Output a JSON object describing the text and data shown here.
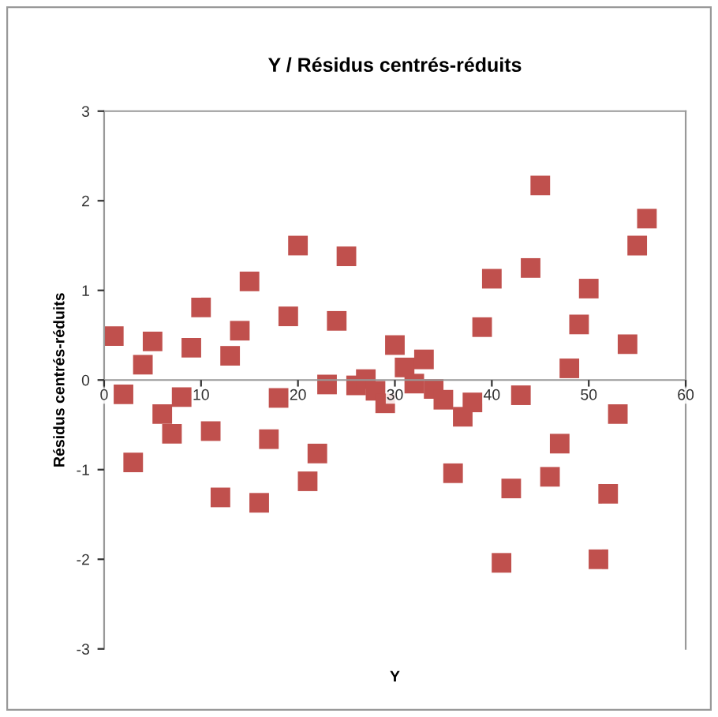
{
  "chart_data": {
    "type": "scatter",
    "title": "Y / Résidus centrés-réduits",
    "xlabel": "Y",
    "ylabel": "Résidus centrés-réduits",
    "x": [
      1,
      2,
      3,
      4,
      5,
      6,
      7,
      8,
      9,
      10,
      11,
      12,
      13,
      14,
      15,
      16,
      17,
      18,
      19,
      20,
      21,
      22,
      23,
      24,
      25,
      26,
      27,
      28,
      29,
      30,
      31,
      32,
      33,
      34,
      35,
      36,
      37,
      38,
      39,
      40,
      41,
      42,
      43,
      44,
      45,
      46,
      47,
      48,
      49,
      50,
      51,
      52,
      53,
      54,
      55,
      56
    ],
    "series": [
      {
        "color": "#c0504d",
        "values": [
          0.49,
          -0.16,
          -0.92,
          0.17,
          0.43,
          -0.38,
          -0.6,
          -0.19,
          0.36,
          0.81,
          -0.57,
          -1.31,
          0.27,
          0.55,
          1.1,
          -1.37,
          -0.66,
          -0.2,
          0.71,
          1.5,
          -1.13,
          -0.82,
          -0.05,
          0.66,
          1.38,
          -0.06,
          0.01,
          -0.12,
          -0.26,
          0.39,
          0.14,
          -0.04,
          0.23,
          -0.1,
          -0.22,
          -1.04,
          -0.41,
          -0.25,
          0.59,
          1.13,
          -2.04,
          -1.21,
          -0.17,
          1.25,
          2.17,
          -1.08,
          -0.71,
          0.13,
          0.62,
          1.02,
          -2.0,
          -1.27,
          -0.38,
          0.4,
          1.5,
          1.8
        ]
      }
    ],
    "xlim": [
      0,
      60
    ],
    "xticks": [
      0,
      10,
      20,
      30,
      40,
      50,
      60
    ],
    "ylim": [
      -3,
      3
    ],
    "yticks": [
      -3,
      -2,
      -1,
      0,
      1,
      2,
      3
    ],
    "grid": false,
    "legend": false,
    "marker": "square"
  }
}
